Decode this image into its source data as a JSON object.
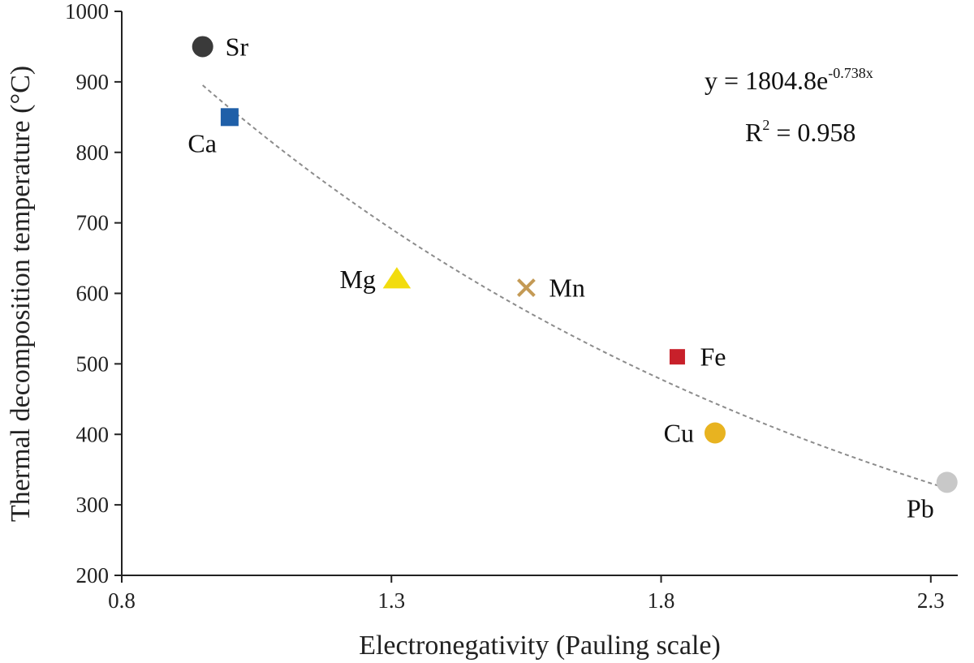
{
  "chart_data": {
    "type": "scatter",
    "xlabel": "Electronegativity (Pauling scale)",
    "ylabel": "Thermal decomposition temperature (°C)",
    "xlim": [
      0.8,
      2.35
    ],
    "ylim": [
      200,
      1000
    ],
    "xticks": [
      "0.8",
      "1.3",
      "1.8",
      "2.3"
    ],
    "yticks": [
      "200",
      "300",
      "400",
      "500",
      "600",
      "700",
      "800",
      "900",
      "1000"
    ],
    "grid": false,
    "points": [
      {
        "label": "Sr",
        "x": 0.95,
        "y": 950,
        "marker": "circle",
        "color": "#3a3a3a",
        "label_side": "right"
      },
      {
        "label": "Ca",
        "x": 1.0,
        "y": 850,
        "marker": "square",
        "color": "#1f5fa8",
        "label_side": "below-left"
      },
      {
        "label": "Mg",
        "x": 1.31,
        "y": 620,
        "marker": "triangle",
        "color": "#f2dc0e",
        "label_side": "left"
      },
      {
        "label": "Mn",
        "x": 1.55,
        "y": 608,
        "marker": "x",
        "color": "#c49a55",
        "label_side": "right"
      },
      {
        "label": "Fe",
        "x": 1.83,
        "y": 510,
        "marker": "square",
        "color": "#c8202a",
        "label_side": "right"
      },
      {
        "label": "Cu",
        "x": 1.9,
        "y": 402,
        "marker": "circle",
        "color": "#e8b320",
        "label_side": "left"
      },
      {
        "label": "Pb",
        "x": 2.33,
        "y": 332,
        "marker": "circle",
        "color": "#c8c8c8",
        "label_side": "below-left"
      }
    ],
    "fit": {
      "type": "exponential",
      "a": 1804.8,
      "b": -0.738,
      "x_range": [
        0.95,
        2.33
      ],
      "color": "#8c8c8c",
      "style": "dashed"
    },
    "equation": {
      "line1_prefix": "y = 1804.8e",
      "line1_exp": "-0.738x",
      "line2_prefix": "R",
      "line2_sup": "2",
      "line2_suffix": " = 0.958"
    }
  }
}
